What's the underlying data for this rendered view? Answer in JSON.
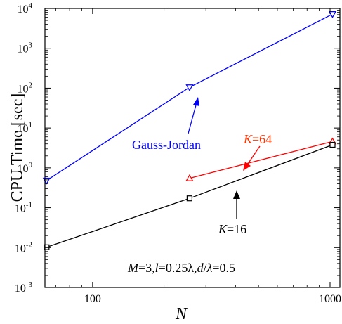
{
  "chart_data": {
    "type": "line",
    "xlabel": "N",
    "ylabel": "CPU Time [sec]",
    "xscale": "log",
    "yscale": "log",
    "xlim": [
      63,
      1100
    ],
    "ylim": [
      0.001,
      10000
    ],
    "grid": false,
    "x_ticks": [
      {
        "value": 100,
        "label": "100"
      },
      {
        "value": 1000,
        "label": "1000"
      }
    ],
    "y_ticks": [
      {
        "exp": -3,
        "base": "10",
        "power": "-3"
      },
      {
        "exp": -2,
        "base": "10",
        "power": "-2"
      },
      {
        "exp": -1,
        "base": "10",
        "power": "-1"
      },
      {
        "exp": 0,
        "base": "10",
        "power": "0"
      },
      {
        "exp": 1,
        "base": "10",
        "power": "1"
      },
      {
        "exp": 2,
        "base": "10",
        "power": "2"
      },
      {
        "exp": 3,
        "base": "10",
        "power": "3"
      },
      {
        "exp": 4,
        "base": "10",
        "power": "4"
      }
    ],
    "series": [
      {
        "name": "Gauss-Jordan",
        "color": "#0000ff",
        "marker": "triangle-down",
        "x": [
          64,
          256,
          1024
        ],
        "y": [
          0.48,
          105,
          7200
        ]
      },
      {
        "name": "K=64",
        "color": "#ff0000",
        "marker": "triangle-up",
        "x": [
          256,
          1024
        ],
        "y": [
          0.55,
          4.6
        ]
      },
      {
        "name": "K=16",
        "color": "#000000",
        "marker": "square",
        "x": [
          64,
          256,
          1024
        ],
        "y": [
          0.0102,
          0.172,
          3.8
        ]
      }
    ],
    "annotations": {
      "gauss_jordan": {
        "text": "Gauss-Jordan",
        "color": "#0000ff"
      },
      "k64": {
        "italic": "K",
        "rest": "=64",
        "color": "#ff3300"
      },
      "k16": {
        "italic": "K",
        "rest": "=16",
        "color": "#000000"
      },
      "params": {
        "m_var": "M",
        "m_val": "=3,",
        "l_var": "l",
        "l_val": "=0.25λ,",
        "d_var": "d",
        "lambda_var": "λ",
        "d_val": "=0.5",
        "slash": "/"
      }
    }
  }
}
